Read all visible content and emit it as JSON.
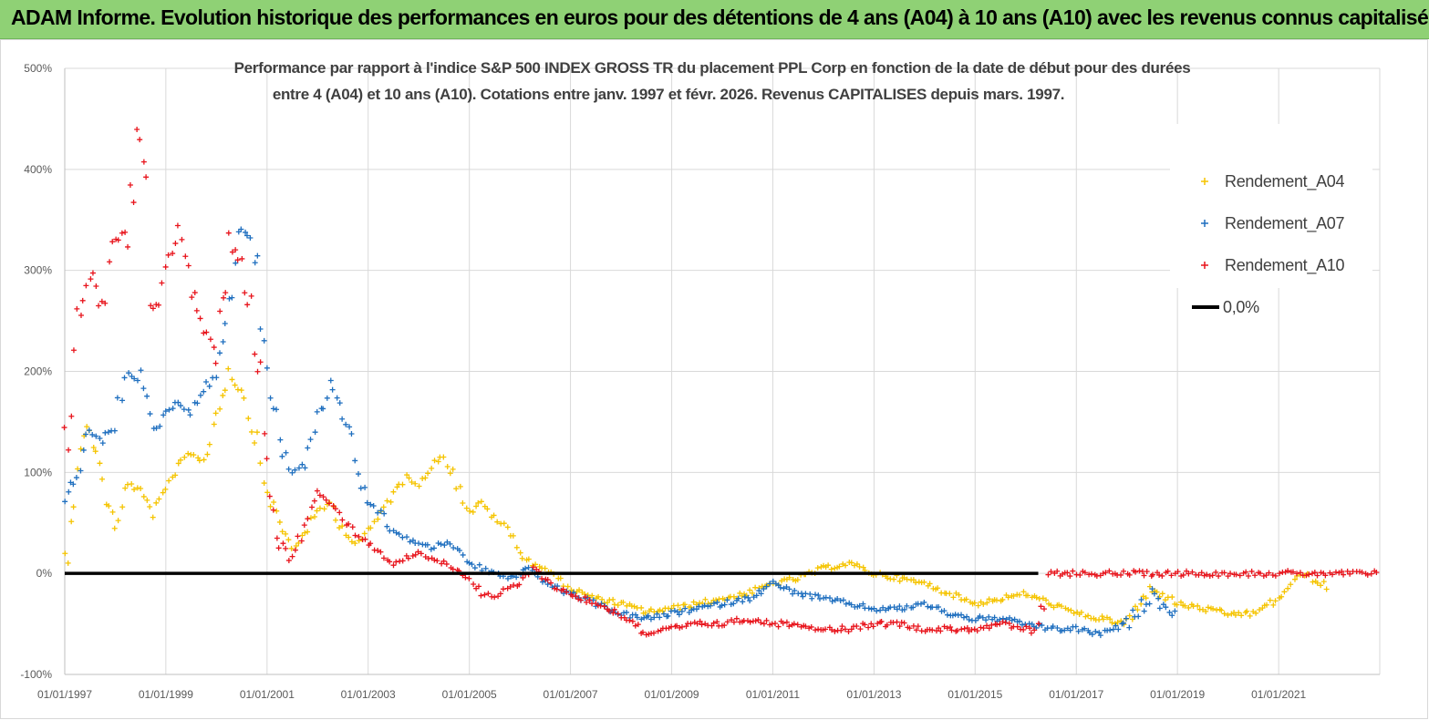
{
  "header": {
    "title": "ADAM Informe. Evolution historique des performances en euros pour des détentions de 4 ans (A04) à 10 ans (A10) avec les revenus connus capitalisés"
  },
  "chart_data": {
    "type": "scatter",
    "title_line1": "Performance par rapport à l'indice S&P 500 INDEX GROSS TR  du placement PPL Corp en fonction de la date de début pour des durées",
    "title_line2": "entre 4 (A04) et 10 ans (A10).  Cotations entre janv. 1997 et févr. 2026. Revenus  CAPITALISES depuis mars. 1997.",
    "xlabel": "",
    "ylabel": "",
    "x_range": [
      "1997-01-01",
      "2023-01-01"
    ],
    "ylim": [
      -100,
      500
    ],
    "y_ticks": [
      "-100%",
      "0%",
      "100%",
      "200%",
      "300%",
      "400%",
      "500%"
    ],
    "x_ticks": [
      "01/01/1997",
      "01/01/1999",
      "01/01/2001",
      "01/01/2003",
      "01/01/2005",
      "01/01/2007",
      "01/01/2009",
      "01/01/2011",
      "01/01/2013",
      "01/01/2015",
      "01/01/2017",
      "01/01/2019",
      "01/01/2021"
    ],
    "grid": true,
    "legend_position": "top-right",
    "legend": [
      "Rendement_A04",
      "Rendement_A07",
      "Rendement_A10",
      "0,0%"
    ],
    "series": [
      {
        "name": "Rendement_A04",
        "color": "#f5c400",
        "x": [
          "1997-01",
          "1997-04",
          "1997-07",
          "1997-10",
          "1998-01",
          "1998-04",
          "1998-07",
          "1998-10",
          "1999-01",
          "1999-04",
          "1999-07",
          "1999-10",
          "2000-01",
          "2000-04",
          "2000-07",
          "2000-10",
          "2001-01",
          "2001-04",
          "2001-07",
          "2001-10",
          "2002-01",
          "2002-04",
          "2002-07",
          "2002-10",
          "2003-01",
          "2003-04",
          "2003-07",
          "2003-10",
          "2004-01",
          "2004-04",
          "2004-07",
          "2004-10",
          "2005-01",
          "2005-04",
          "2005-07",
          "2005-10",
          "2006-01",
          "2006-04",
          "2006-07",
          "2006-10",
          "2007-01",
          "2007-07",
          "2008-01",
          "2008-07",
          "2009-01",
          "2009-07",
          "2010-01",
          "2010-07",
          "2011-01",
          "2011-07",
          "2012-01",
          "2012-07",
          "2013-01",
          "2013-07",
          "2014-01",
          "2014-07",
          "2015-01",
          "2015-07",
          "2016-01",
          "2016-07",
          "2017-01",
          "2017-07",
          "2018-01",
          "2018-07",
          "2019-01",
          "2019-07",
          "2020-01",
          "2020-07",
          "2021-01",
          "2021-04",
          "2021-07",
          "2022-01"
        ],
        "values": [
          10,
          110,
          150,
          90,
          40,
          90,
          80,
          60,
          80,
          110,
          120,
          110,
          160,
          200,
          180,
          140,
          80,
          50,
          25,
          40,
          60,
          70,
          45,
          30,
          40,
          60,
          80,
          95,
          90,
          105,
          120,
          90,
          60,
          70,
          55,
          45,
          20,
          10,
          5,
          -5,
          -15,
          -25,
          -30,
          -38,
          -35,
          -30,
          -25,
          -20,
          -10,
          -5,
          5,
          10,
          0,
          -5,
          -10,
          -20,
          -30,
          -25,
          -20,
          -30,
          -40,
          -45,
          -50,
          -15,
          -30,
          -35,
          -40,
          -40,
          -25,
          -10,
          0,
          -15
        ]
      },
      {
        "name": "Rendement_A07",
        "color": "#1f6fbf",
        "x": [
          "1997-01",
          "1997-04",
          "1997-07",
          "1997-10",
          "1998-01",
          "1998-04",
          "1998-07",
          "1998-10",
          "1999-01",
          "1999-04",
          "1999-07",
          "1999-10",
          "2000-01",
          "2000-04",
          "2000-07",
          "2000-10",
          "2001-01",
          "2001-04",
          "2001-07",
          "2001-10",
          "2002-01",
          "2002-04",
          "2002-07",
          "2002-10",
          "2003-01",
          "2003-04",
          "2003-07",
          "2003-10",
          "2004-01",
          "2004-04",
          "2004-07",
          "2004-10",
          "2005-01",
          "2005-04",
          "2005-07",
          "2005-10",
          "2006-01",
          "2006-04",
          "2006-07",
          "2006-10",
          "2007-01",
          "2007-07",
          "2008-01",
          "2008-07",
          "2009-01",
          "2009-07",
          "2010-01",
          "2010-07",
          "2011-01",
          "2011-07",
          "2012-01",
          "2012-07",
          "2013-01",
          "2013-07",
          "2014-01",
          "2014-07",
          "2015-01",
          "2015-07",
          "2016-01",
          "2016-07",
          "2017-01",
          "2017-07",
          "2018-01",
          "2018-07",
          "2019-01"
        ],
        "values": [
          70,
          100,
          140,
          130,
          150,
          200,
          190,
          140,
          160,
          170,
          160,
          180,
          200,
          270,
          340,
          330,
          200,
          130,
          100,
          110,
          150,
          190,
          160,
          120,
          70,
          60,
          40,
          35,
          30,
          25,
          30,
          25,
          10,
          5,
          0,
          -5,
          0,
          5,
          -10,
          -15,
          -20,
          -30,
          -40,
          -45,
          -40,
          -35,
          -30,
          -25,
          -10,
          -20,
          -25,
          -30,
          -35,
          -35,
          -30,
          -40,
          -45,
          -45,
          -50,
          -55,
          -55,
          -60,
          -50,
          -20,
          -45
        ]
      },
      {
        "name": "Rendement_A10",
        "color": "#e8141c",
        "x": [
          "1997-01",
          "1997-04",
          "1997-07",
          "1997-10",
          "1998-01",
          "1998-04",
          "1998-07",
          "1998-10",
          "1999-01",
          "1999-04",
          "1999-07",
          "1999-10",
          "2000-01",
          "2000-04",
          "2000-07",
          "2000-10",
          "2001-01",
          "2001-04",
          "2001-07",
          "2001-10",
          "2002-01",
          "2002-04",
          "2002-07",
          "2002-10",
          "2003-01",
          "2003-04",
          "2003-07",
          "2003-10",
          "2004-01",
          "2004-04",
          "2004-07",
          "2004-10",
          "2005-01",
          "2005-04",
          "2005-07",
          "2005-10",
          "2006-01",
          "2006-04",
          "2006-07",
          "2006-10",
          "2007-01",
          "2007-07",
          "2008-01",
          "2008-07",
          "2009-01",
          "2009-07",
          "2010-01",
          "2010-07",
          "2011-01",
          "2011-07",
          "2012-01",
          "2012-07",
          "2013-01",
          "2013-07",
          "2014-01",
          "2014-07",
          "2015-01",
          "2015-07",
          "2016-01",
          "2016-04",
          "2016-07",
          "2017-01",
          "2018-01",
          "2019-01",
          "2020-01",
          "2021-01",
          "2022-01",
          "2023-01"
        ],
        "values": [
          120,
          250,
          300,
          260,
          330,
          340,
          440,
          250,
          300,
          350,
          280,
          240,
          220,
          330,
          300,
          250,
          100,
          30,
          10,
          50,
          80,
          70,
          55,
          40,
          30,
          20,
          10,
          15,
          20,
          15,
          10,
          5,
          -5,
          -20,
          -25,
          -15,
          -10,
          5,
          -5,
          -15,
          -20,
          -30,
          -40,
          -60,
          -55,
          -50,
          -50,
          -45,
          -50,
          -50,
          -55,
          -55,
          -50,
          -50,
          -55,
          -55,
          -55,
          -50,
          -55,
          -60,
          0,
          0,
          0,
          0,
          0,
          0,
          0,
          0
        ]
      },
      {
        "name": "0,0%",
        "color": "#000000",
        "x": [
          "1997-01",
          "2016-04"
        ],
        "values": [
          0,
          0
        ]
      }
    ]
  }
}
